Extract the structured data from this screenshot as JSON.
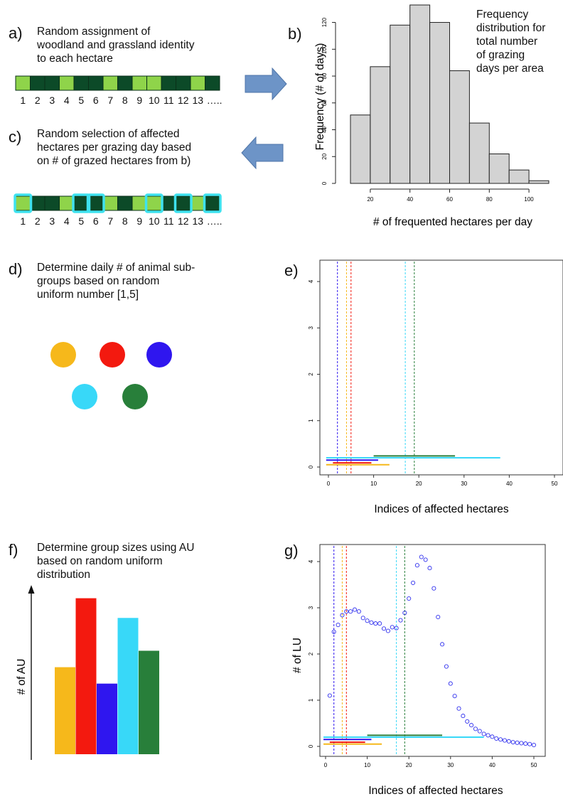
{
  "panels": {
    "a": {
      "letter": "a)",
      "text": [
        "Random assignment of",
        "woodland and grassland identity",
        "to each hectare"
      ]
    },
    "b": {
      "letter": "b)",
      "note": [
        "Frequency",
        "distribution for",
        "total number",
        "of grazing",
        "days per area"
      ]
    },
    "c": {
      "letter": "c)",
      "text": [
        "Random selection of affected",
        "hectares per grazing day based",
        "on # of grazed hectares from b)"
      ]
    },
    "d": {
      "letter": "d)",
      "text": [
        "Determine daily # of animal sub-",
        "groups based on random",
        "uniform number [1,5]"
      ]
    },
    "e": {
      "letter": "e)"
    },
    "f": {
      "letter": "f)",
      "text": [
        "Determine group sizes using AU",
        "based on random uniform",
        "distribution"
      ],
      "axis_label": "# of AU"
    },
    "g": {
      "letter": "g)"
    }
  },
  "strip_labels": [
    "1",
    "2",
    "3",
    "4",
    "5",
    "6",
    "7",
    "8",
    "9",
    "10",
    "11",
    "12",
    "13",
    "….."
  ],
  "strip_a": [
    "g",
    "w",
    "w",
    "g",
    "w",
    "w",
    "g",
    "w",
    "g",
    "g",
    "w",
    "w",
    "g",
    "w"
  ],
  "strip_c_selected": [
    1,
    5,
    6,
    10,
    12,
    14
  ],
  "colors": {
    "grass": "#8fd44a",
    "wood": "#0c4a28",
    "highlight": "#3ee2ef",
    "arrow": "#6d94c7",
    "orange": "#f6b81b",
    "red": "#f3190f",
    "blue": "#2f16ef",
    "cyan": "#38d8f8",
    "green": "#287f3a",
    "points": "#3232ee"
  },
  "groups": [
    {
      "name": "orange",
      "color": "#f6b81b",
      "size": 0.53
    },
    {
      "name": "red",
      "color": "#f3190f",
      "size": 0.95
    },
    {
      "name": "blue",
      "color": "#2f16ef",
      "size": 0.43
    },
    {
      "name": "cyan",
      "color": "#38d8f8",
      "size": 0.83
    },
    {
      "name": "green",
      "color": "#287f3a",
      "size": 0.63
    }
  ],
  "chart_data": [
    {
      "id": "b",
      "type": "bar",
      "xlabel": "# of frequented hectares per day",
      "ylabel": "Frequency (# of days)",
      "bins": [
        [
          10,
          20
        ],
        [
          20,
          30
        ],
        [
          30,
          40
        ],
        [
          40,
          50
        ],
        [
          50,
          60
        ],
        [
          60,
          70
        ],
        [
          70,
          80
        ],
        [
          80,
          90
        ],
        [
          90,
          100
        ],
        [
          100,
          110
        ]
      ],
      "values": [
        51,
        87,
        118,
        133,
        120,
        84,
        45,
        22,
        10,
        2
      ],
      "xticks": [
        20,
        40,
        60,
        80,
        100
      ],
      "yticks": [
        0,
        20,
        40,
        60,
        80,
        100,
        120
      ],
      "xlim": [
        10,
        110
      ],
      "ylim": [
        0,
        133
      ]
    },
    {
      "id": "e",
      "type": "line",
      "xlabel": "Indices of affected hectares",
      "xticks": [
        0,
        10,
        20,
        30,
        40,
        50
      ],
      "yticks": [
        0,
        1,
        2,
        3,
        4
      ],
      "xlim": [
        0,
        50
      ],
      "ylim": [
        0,
        4.2
      ],
      "vlines": [
        {
          "x": 2,
          "color": "#2f16ef"
        },
        {
          "x": 4,
          "color": "#f6b81b"
        },
        {
          "x": 5,
          "color": "#f3190f"
        },
        {
          "x": 17,
          "color": "#38d8f8"
        },
        {
          "x": 19,
          "color": "#287f3a"
        }
      ],
      "segments": [
        {
          "x0": 10,
          "x1": 28,
          "y": 0.24,
          "color": "#287f3a"
        },
        {
          "x0": -0.5,
          "x1": 38,
          "y": 0.2,
          "color": "#38d8f8"
        },
        {
          "x0": -0.5,
          "x1": 11,
          "y": 0.15,
          "color": "#2f16ef"
        },
        {
          "x0": 1,
          "x1": 9.5,
          "y": 0.09,
          "color": "#f3190f"
        },
        {
          "x0": -0.5,
          "x1": 13.5,
          "y": 0.05,
          "color": "#f6b81b"
        }
      ]
    },
    {
      "id": "g",
      "type": "scatter",
      "xlabel": "Indices of affected hectares",
      "ylabel": "# of LU",
      "xticks": [
        0,
        10,
        20,
        30,
        40,
        50
      ],
      "yticks": [
        0,
        1,
        2,
        3,
        4
      ],
      "xlim": [
        0,
        50
      ],
      "ylim": [
        0,
        4.2
      ],
      "x": [
        1,
        2,
        3,
        4,
        5,
        6,
        7,
        8,
        9,
        10,
        11,
        12,
        13,
        14,
        15,
        16,
        17,
        18,
        19,
        20,
        21,
        22,
        23,
        24,
        25,
        26,
        27,
        28,
        29,
        30,
        31,
        32,
        33,
        34,
        35,
        36,
        37,
        38,
        39,
        40,
        41,
        42,
        43,
        44,
        45,
        46,
        47,
        48,
        49,
        50
      ],
      "y": [
        1.1,
        2.48,
        2.63,
        2.84,
        2.92,
        2.92,
        2.96,
        2.92,
        2.78,
        2.72,
        2.68,
        2.66,
        2.66,
        2.55,
        2.5,
        2.58,
        2.56,
        2.73,
        2.89,
        3.2,
        3.54,
        3.92,
        4.1,
        4.04,
        3.86,
        3.42,
        2.8,
        2.21,
        1.73,
        1.36,
        1.09,
        0.82,
        0.66,
        0.54,
        0.46,
        0.38,
        0.33,
        0.27,
        0.24,
        0.21,
        0.17,
        0.15,
        0.13,
        0.11,
        0.09,
        0.08,
        0.07,
        0.06,
        0.05,
        0.03
      ],
      "vlines": [
        {
          "x": 2,
          "color": "#2f16ef"
        },
        {
          "x": 4,
          "color": "#f6b81b"
        },
        {
          "x": 5,
          "color": "#f3190f"
        },
        {
          "x": 17,
          "color": "#38d8f8"
        },
        {
          "x": 19,
          "color": "#287f3a"
        }
      ],
      "segments": [
        {
          "x0": 10,
          "x1": 28,
          "y": 0.24,
          "color": "#287f3a"
        },
        {
          "x0": -0.5,
          "x1": 38,
          "y": 0.2,
          "color": "#38d8f8"
        },
        {
          "x0": -0.5,
          "x1": 11,
          "y": 0.15,
          "color": "#2f16ef"
        },
        {
          "x0": 1,
          "x1": 9.5,
          "y": 0.09,
          "color": "#f3190f"
        },
        {
          "x0": -0.5,
          "x1": 13.5,
          "y": 0.05,
          "color": "#f6b81b"
        }
      ]
    }
  ]
}
